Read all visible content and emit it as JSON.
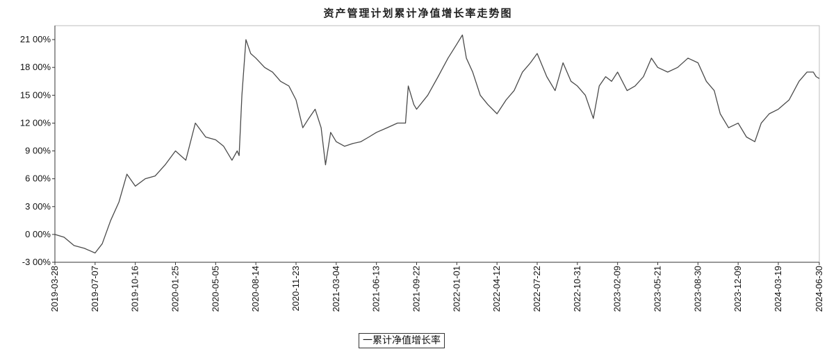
{
  "chart_data": {
    "type": "line",
    "title": "资产管理计划累计净值增长率走势图",
    "xlabel": "",
    "ylabel": "",
    "ylim": [
      -3,
      22.5
    ],
    "yticks": [
      -3,
      0,
      3,
      6,
      9,
      12,
      15,
      18,
      21
    ],
    "ytick_labels": [
      "-3 00%",
      "0 00%",
      "3 00%",
      "6 00%",
      "9 00%",
      "12 00%",
      "15 00%",
      "18 00%",
      "21 00%"
    ],
    "xticks": [
      "2019-03-28",
      "2019-07-07",
      "2019-10-16",
      "2020-01-25",
      "2020-05-05",
      "2020-08-14",
      "2020-11-23",
      "2021-03-04",
      "2021-06-13",
      "2021-09-22",
      "2022-01-01",
      "2022-04-12",
      "2022-07-22",
      "2022-10-31",
      "2023-02-09",
      "2023-05-21",
      "2023-08-30",
      "2023-12-09",
      "2024-03-19",
      "2024-06-30"
    ],
    "grid": false,
    "legend": "bottom-center",
    "line_color": "#4a4a4a",
    "series": [
      {
        "name": "累计净值增长率",
        "x": [
          "2019-03-28",
          "2019-04-20",
          "2019-05-15",
          "2019-06-10",
          "2019-07-07",
          "2019-07-25",
          "2019-08-15",
          "2019-09-05",
          "2019-09-25",
          "2019-10-16",
          "2019-11-10",
          "2019-12-05",
          "2019-12-30",
          "2020-01-25",
          "2020-02-20",
          "2020-03-15",
          "2020-04-10",
          "2020-05-05",
          "2020-05-25",
          "2020-06-15",
          "2020-06-28",
          "2020-07-03",
          "2020-07-10",
          "2020-07-20",
          "2020-08-01",
          "2020-08-14",
          "2020-09-05",
          "2020-09-25",
          "2020-10-15",
          "2020-11-05",
          "2020-11-23",
          "2020-12-10",
          "2020-12-25",
          "2021-01-10",
          "2021-01-25",
          "2021-02-05",
          "2021-02-18",
          "2021-03-04",
          "2021-03-25",
          "2021-04-15",
          "2021-05-05",
          "2021-05-25",
          "2021-06-13",
          "2021-07-10",
          "2021-08-05",
          "2021-08-25",
          "2021-09-01",
          "2021-09-15",
          "2021-09-22",
          "2021-10-20",
          "2021-11-15",
          "2021-12-10",
          "2022-01-01",
          "2022-01-15",
          "2022-01-25",
          "2022-02-10",
          "2022-03-01",
          "2022-03-20",
          "2022-04-12",
          "2022-05-05",
          "2022-05-25",
          "2022-06-15",
          "2022-07-05",
          "2022-07-22",
          "2022-08-15",
          "2022-09-05",
          "2022-09-25",
          "2022-10-15",
          "2022-10-31",
          "2022-11-20",
          "2022-12-10",
          "2022-12-25",
          "2023-01-10",
          "2023-01-25",
          "2023-02-09",
          "2023-03-05",
          "2023-03-25",
          "2023-04-15",
          "2023-05-05",
          "2023-05-21",
          "2023-06-15",
          "2023-07-10",
          "2023-08-05",
          "2023-08-30",
          "2023-09-20",
          "2023-10-10",
          "2023-10-25",
          "2023-11-15",
          "2023-12-09",
          "2023-12-30",
          "2024-01-20",
          "2024-02-05",
          "2024-02-25",
          "2024-03-19",
          "2024-04-15",
          "2024-05-10",
          "2024-05-30",
          "2024-06-15",
          "2024-06-22",
          "2024-06-30"
        ],
        "values": [
          0.0,
          -0.3,
          -1.2,
          -1.5,
          -2.0,
          -1.0,
          1.5,
          3.5,
          6.5,
          5.2,
          6.0,
          6.3,
          7.5,
          9.0,
          8.0,
          12.0,
          10.5,
          10.2,
          9.5,
          8.0,
          9.0,
          8.5,
          15.0,
          21.0,
          19.5,
          19.0,
          18.0,
          17.5,
          16.5,
          16.0,
          14.5,
          11.5,
          12.5,
          13.5,
          11.5,
          7.5,
          11.0,
          10.0,
          9.5,
          9.8,
          10.0,
          10.5,
          11.0,
          11.5,
          12.0,
          12.0,
          16.0,
          14.0,
          13.5,
          15.0,
          17.0,
          19.0,
          20.5,
          21.5,
          19.0,
          17.5,
          15.0,
          14.0,
          13.0,
          14.5,
          15.5,
          17.5,
          18.5,
          19.5,
          17.0,
          15.5,
          18.5,
          16.5,
          16.0,
          15.0,
          12.5,
          16.0,
          17.0,
          16.5,
          17.5,
          15.5,
          16.0,
          17.0,
          19.0,
          18.0,
          17.5,
          18.0,
          19.0,
          18.5,
          16.5,
          15.5,
          13.0,
          11.5,
          12.0,
          10.5,
          10.0,
          12.0,
          13.0,
          13.5,
          14.5,
          16.5,
          17.5,
          17.5,
          17.0,
          16.8
        ]
      }
    ]
  },
  "legend": {
    "label": "一累计净值增长率"
  }
}
